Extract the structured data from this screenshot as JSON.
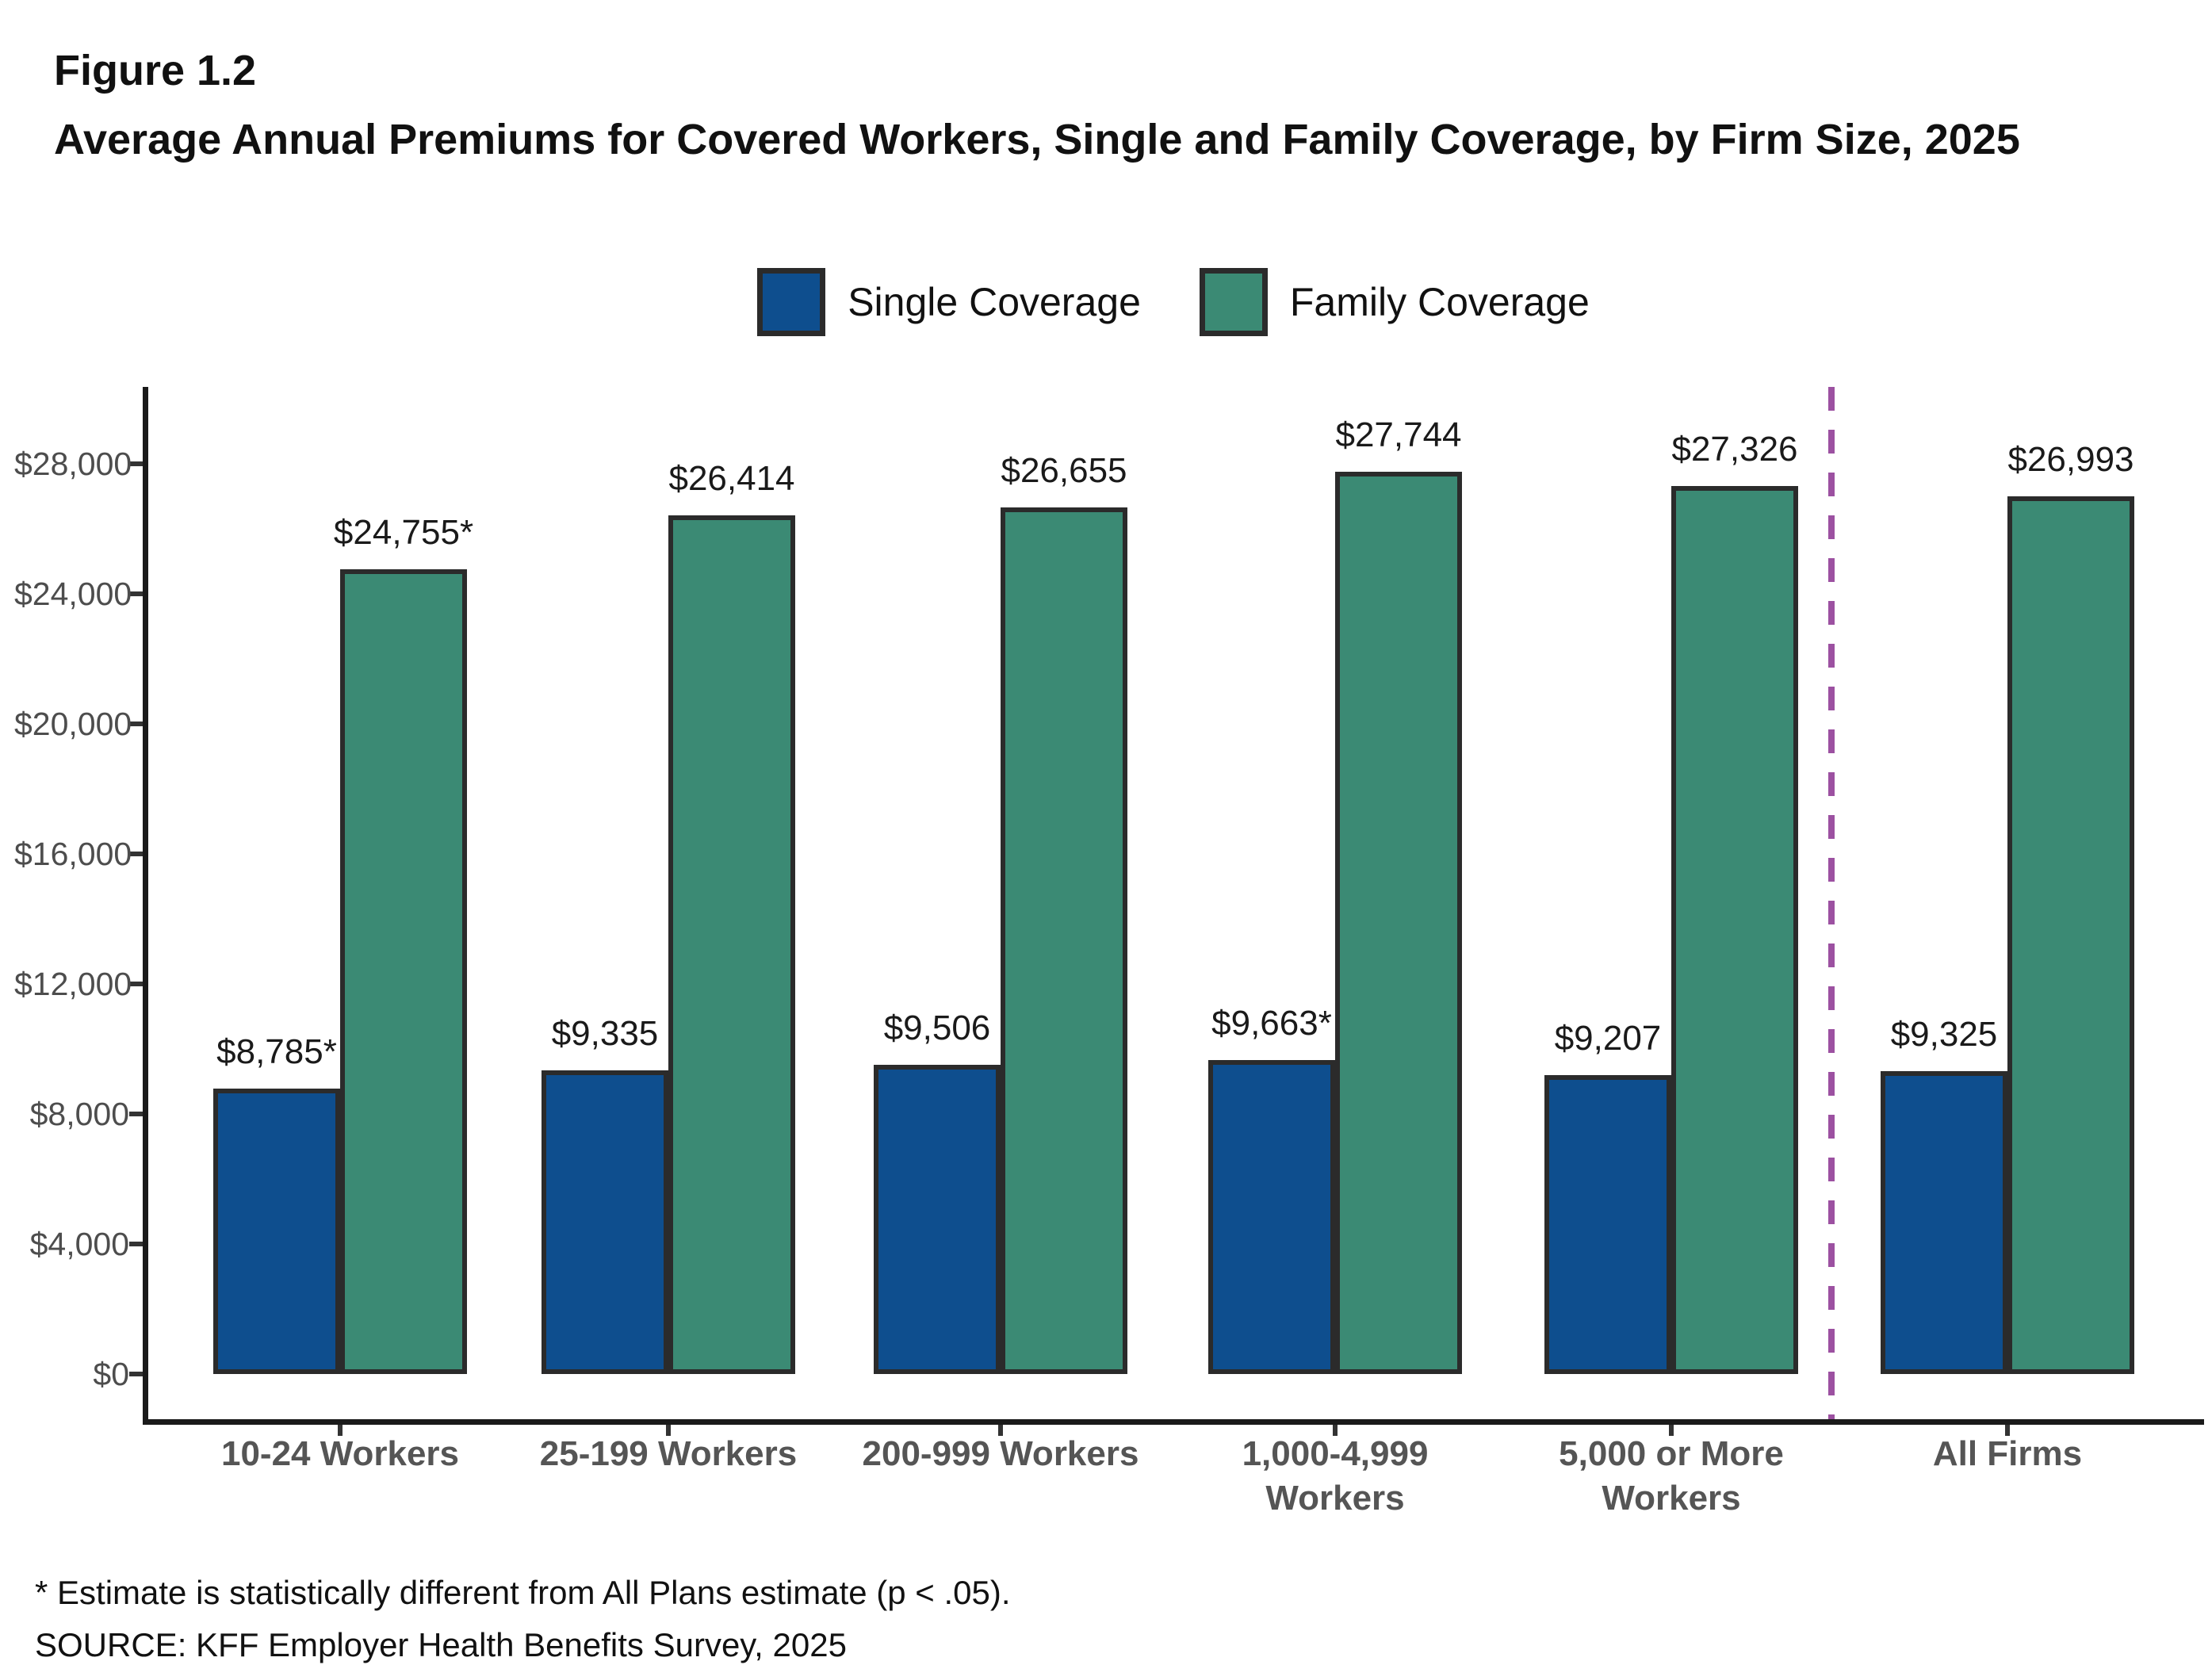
{
  "header": {
    "figure_label": "Figure 1.2",
    "title": "Average Annual Premiums for Covered Workers, Single and Family Coverage, by Firm Size, 2025"
  },
  "legend": {
    "items": [
      {
        "label": "Single Coverage",
        "color": "#0E4E8E"
      },
      {
        "label": "Family Coverage",
        "color": "#3B8A74"
      }
    ]
  },
  "footnotes": {
    "note": "* Estimate is statistically different from All Plans estimate (p < .05).",
    "source": "SOURCE: KFF Employer Health Benefits Survey, 2025"
  },
  "chart_data": {
    "type": "bar",
    "title": "Average Annual Premiums for Covered Workers, Single and Family Coverage, by Firm Size, 2025",
    "categories": [
      "10-24 Workers",
      "25-199 Workers",
      "200-999 Workers",
      "1,000-4,999\nWorkers",
      "5,000 or More\nWorkers",
      "All Firms"
    ],
    "series": [
      {
        "name": "Single Coverage",
        "color": "#0E4E8E",
        "values": [
          8785,
          9335,
          9506,
          9663,
          9207,
          9325
        ],
        "data_labels": [
          "$8,785*",
          "$9,335",
          "$9,506",
          "$9,663*",
          "$9,207",
          "$9,325"
        ]
      },
      {
        "name": "Family Coverage",
        "color": "#3B8A74",
        "values": [
          24755,
          26414,
          26655,
          27744,
          27326,
          26993
        ],
        "data_labels": [
          "$24,755*",
          "$26,414",
          "$26,655",
          "$27,744",
          "$27,326",
          "$26,993"
        ]
      }
    ],
    "ylim": [
      0,
      28000
    ],
    "yticks": [
      0,
      4000,
      8000,
      12000,
      16000,
      20000,
      24000,
      28000
    ],
    "ytick_labels": [
      "$0",
      "$4,000",
      "$8,000",
      "$12,000",
      "$16,000",
      "$20,000",
      "$24,000",
      "$28,000"
    ],
    "xlabel": "",
    "ylabel": "",
    "grid": false,
    "legend_position": "top",
    "bar_outline_color": "#2B2B2B",
    "separator": {
      "before_category": "All Firms",
      "color": "#9C51A1",
      "style": "dashed"
    },
    "annotation_note": "* Estimate is statistically different from All Plans estimate (p < .05)."
  }
}
